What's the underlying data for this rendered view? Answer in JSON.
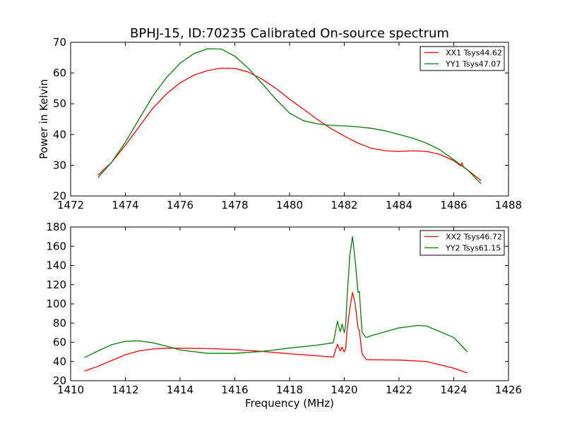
{
  "chart_data": {
    "title": "BPHJ-15, ID:70235 Calibrated On-source spectrum",
    "xlabel": "Frequency (MHz)",
    "ylabel": "Power in Kelvin",
    "panels": [
      {
        "type": "line",
        "xlim": [
          1472,
          1488
        ],
        "ylim": [
          20,
          70
        ],
        "xticks": [
          1472,
          1474,
          1476,
          1478,
          1480,
          1482,
          1484,
          1486,
          1488
        ],
        "yticks": [
          20,
          30,
          40,
          50,
          60,
          70
        ],
        "legend_position": "top-right",
        "series": [
          {
            "name": "XX1 Tsys44.62",
            "color": "#ff0000",
            "x": [
              1473.0,
              1473.5,
              1474.0,
              1474.5,
              1475.0,
              1475.5,
              1476.0,
              1476.5,
              1477.0,
              1477.5,
              1478.0,
              1478.5,
              1479.0,
              1479.5,
              1480.0,
              1480.5,
              1481.0,
              1481.5,
              1482.0,
              1482.5,
              1483.0,
              1483.5,
              1484.0,
              1484.5,
              1485.0,
              1485.5,
              1486.0,
              1486.25,
              1486.3,
              1486.35,
              1486.5,
              1487.0
            ],
            "y": [
              26.8,
              31.0,
              36.5,
              42.5,
              48.5,
              53.2,
              56.8,
              59.3,
              60.8,
              61.6,
              61.5,
              60.3,
              58.0,
              55.0,
              51.5,
              48.3,
              45.0,
              42.0,
              39.5,
              37.2,
              35.5,
              34.7,
              34.5,
              34.7,
              34.5,
              33.5,
              31.5,
              29.8,
              30.8,
              29.5,
              28.5,
              25.0
            ]
          },
          {
            "name": "YY1 Tsys47.07",
            "color": "#008000",
            "x": [
              1473.0,
              1473.5,
              1474.0,
              1474.5,
              1475.0,
              1475.5,
              1476.0,
              1476.5,
              1477.0,
              1477.5,
              1478.0,
              1478.5,
              1479.0,
              1479.5,
              1480.0,
              1480.5,
              1481.0,
              1481.5,
              1482.0,
              1482.5,
              1483.0,
              1483.5,
              1484.0,
              1484.5,
              1485.0,
              1485.5,
              1486.0,
              1486.5,
              1487.0
            ],
            "y": [
              26.0,
              31.0,
              37.5,
              45.0,
              52.5,
              58.5,
              63.2,
              66.3,
              67.9,
              67.8,
              65.5,
              61.5,
              56.5,
              51.5,
              47.0,
              44.5,
              43.5,
              43.0,
              42.8,
              42.5,
              42.0,
              41.2,
              40.0,
              38.8,
              37.2,
              35.0,
              31.8,
              28.5,
              24.0
            ]
          }
        ]
      },
      {
        "type": "line",
        "xlim": [
          1410,
          1426
        ],
        "ylim": [
          20,
          180
        ],
        "xticks": [
          1410,
          1412,
          1414,
          1416,
          1418,
          1420,
          1422,
          1424,
          1426
        ],
        "yticks": [
          20,
          40,
          60,
          80,
          100,
          120,
          140,
          160,
          180
        ],
        "legend_position": "top-right",
        "series": [
          {
            "name": "XX2 Tsys46.72",
            "color": "#ff0000",
            "x": [
              1410.5,
              1411.0,
              1411.5,
              1412.0,
              1412.5,
              1413.0,
              1413.5,
              1414.0,
              1415.0,
              1416.0,
              1417.0,
              1418.0,
              1419.0,
              1419.6,
              1419.75,
              1419.85,
              1419.92,
              1420.0,
              1420.05,
              1420.1,
              1420.2,
              1420.3,
              1420.4,
              1420.5,
              1420.55,
              1420.65,
              1420.8,
              1421.0,
              1422.0,
              1423.0,
              1424.0,
              1424.5
            ],
            "y": [
              30.0,
              35.0,
              41.0,
              47.0,
              51.0,
              53.0,
              53.8,
              53.8,
              53.5,
              52.5,
              50.5,
              48.0,
              46.0,
              44.5,
              58.0,
              51.0,
              55.0,
              50.0,
              53.0,
              72.0,
              95.0,
              112.0,
              100.0,
              75.0,
              72.0,
              48.0,
              42.0,
              41.8,
              41.5,
              40.0,
              33.0,
              28.0
            ]
          },
          {
            "name": "YY2 Tsys61.15",
            "color": "#008000",
            "x": [
              1410.5,
              1411.0,
              1411.5,
              1412.0,
              1412.5,
              1413.0,
              1413.5,
              1414.0,
              1415.0,
              1416.0,
              1417.0,
              1418.0,
              1419.0,
              1419.6,
              1419.75,
              1419.85,
              1419.92,
              1420.0,
              1420.05,
              1420.1,
              1420.2,
              1420.3,
              1420.4,
              1420.5,
              1420.55,
              1420.65,
              1420.8,
              1421.0,
              1422.0,
              1422.7,
              1423.0,
              1424.0,
              1424.5
            ],
            "y": [
              44.0,
              51.0,
              57.5,
              61.0,
              61.5,
              59.5,
              56.0,
              52.0,
              48.5,
              48.5,
              50.5,
              54.0,
              57.0,
              59.5,
              82.0,
              71.0,
              79.0,
              70.0,
              78.0,
              105.0,
              150.0,
              170.0,
              145.0,
              112.0,
              113.0,
              70.0,
              65.0,
              67.0,
              75.0,
              77.5,
              77.0,
              65.0,
              50.0
            ]
          }
        ]
      }
    ]
  }
}
